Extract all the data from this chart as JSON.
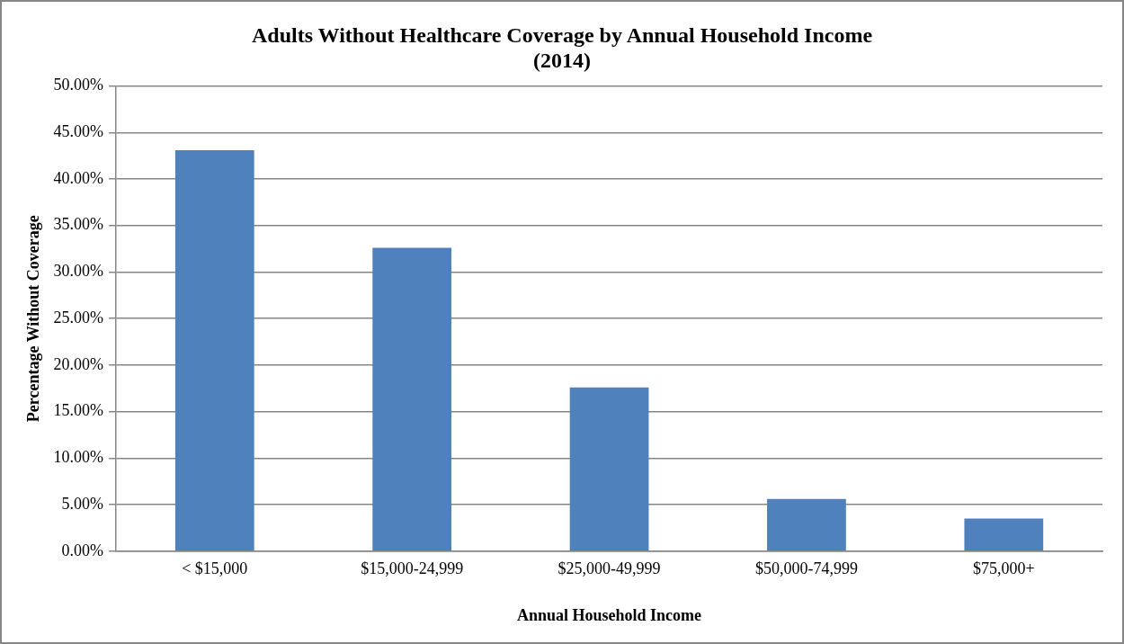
{
  "chart_data": {
    "type": "bar",
    "title": [
      "Adults Without Healthcare Coverage by Annual Household Income",
      "(2014)"
    ],
    "xlabel": "Annual Household Income",
    "ylabel": "Percentage Without Coverage",
    "categories": [
      "< $15,000",
      "$15,000-24,999",
      "$25,000-49,999",
      "$50,000-74,999",
      "$75,000+"
    ],
    "values": [
      43.1,
      32.6,
      17.6,
      5.6,
      3.5
    ],
    "color": "#4f81bd",
    "ylim": [
      0,
      50
    ],
    "yticks": [
      {
        "value": 0,
        "label": "0.00%"
      },
      {
        "value": 5,
        "label": "5.00%"
      },
      {
        "value": 10,
        "label": "10.00%"
      },
      {
        "value": 15,
        "label": "15.00%"
      },
      {
        "value": 20,
        "label": "20.00%"
      },
      {
        "value": 25,
        "label": "25.00%"
      },
      {
        "value": 30,
        "label": "30.00%"
      },
      {
        "value": 35,
        "label": "35.00%"
      },
      {
        "value": 40,
        "label": "40.00%"
      },
      {
        "value": 45,
        "label": "45.00%"
      },
      {
        "value": 50,
        "label": "50.00%"
      }
    ],
    "grid": "y",
    "legend": false
  }
}
